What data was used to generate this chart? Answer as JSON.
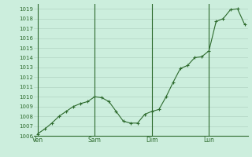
{
  "background_color": "#cceedd",
  "plot_bg_color": "#cceedd",
  "grid_color": "#aaccbb",
  "line_color": "#2d6a2d",
  "marker_color": "#2d6a2d",
  "ylabel_color": "#2d6a2d",
  "xlabel_color": "#2d6a2d",
  "ylim": [
    1006,
    1019.5
  ],
  "yticks": [
    1006,
    1007,
    1008,
    1009,
    1010,
    1011,
    1012,
    1013,
    1014,
    1015,
    1016,
    1017,
    1018,
    1019
  ],
  "day_labels": [
    "Ven",
    "Sam",
    "Dim",
    "Lun"
  ],
  "day_positions": [
    0,
    8,
    16,
    24
  ],
  "vline_positions": [
    0,
    8,
    16,
    24
  ],
  "x_values_full": [
    0,
    1,
    2,
    3,
    4,
    5,
    6,
    7,
    8,
    9,
    10,
    11,
    12,
    13,
    14,
    15,
    16,
    17,
    18,
    19,
    20,
    21,
    22,
    23,
    24,
    25,
    26,
    27,
    28,
    29
  ],
  "y_values_full": [
    1006.2,
    1006.7,
    1007.3,
    1008.0,
    1008.5,
    1009.0,
    1009.3,
    1009.5,
    1010.0,
    1009.9,
    1009.5,
    1008.5,
    1007.5,
    1007.3,
    1007.3,
    1008.2,
    1008.5,
    1008.7,
    1010.0,
    1011.5,
    1012.9,
    1013.2,
    1014.0,
    1014.1,
    1014.7,
    1017.7,
    1018.0,
    1018.9,
    1019.0,
    1017.4
  ]
}
